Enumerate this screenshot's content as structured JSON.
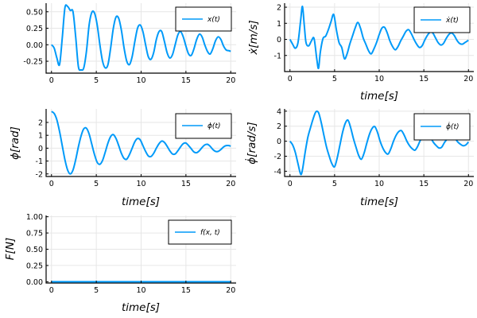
{
  "colors": {
    "line": "#009af9",
    "grid": "#e6e6e6",
    "axis": "#000000",
    "background": "#ffffff"
  },
  "chart_data": [
    {
      "id": "x",
      "type": "line",
      "title": "",
      "xlabel": "",
      "ylabel": "",
      "legend": "x(t)",
      "legend_position": "top-right",
      "grid": true,
      "xlim": [
        -0.6,
        20.6
      ],
      "ylim": [
        -0.43,
        0.63
      ],
      "xticks": [
        0,
        5,
        10,
        15,
        20
      ],
      "xtick_labels": [
        "0",
        "5",
        "10",
        "15",
        "20"
      ],
      "yticks": [
        -0.25,
        0,
        0.25,
        0.5
      ],
      "ytick_labels": [
        "-0.25",
        "0.00",
        "0.25",
        "0.50"
      ],
      "series": [
        {
          "name": "x(t)",
          "x": [
            0,
            0.3,
            0.6,
            0.9,
            1.2,
            1.5,
            1.8,
            2.1,
            2.4,
            2.7,
            3.0,
            3.3,
            3.6,
            3.9,
            4.2,
            4.5,
            4.8,
            5.1,
            5.4,
            5.7,
            6.0,
            6.3,
            6.6,
            6.9,
            7.2,
            7.5,
            7.8,
            8.1,
            8.4,
            8.7,
            9.0,
            9.3,
            9.6,
            9.9,
            10.2,
            10.5,
            10.8,
            11.1,
            11.4,
            11.7,
            12.0,
            12.3,
            12.6,
            12.9,
            13.2,
            13.5,
            13.8,
            14.1,
            14.4,
            14.7,
            15.0,
            15.3,
            15.6,
            15.9,
            16.2,
            16.5,
            16.8,
            17.1,
            17.4,
            17.7,
            18.0,
            18.3,
            18.6,
            18.9,
            19.2,
            19.5,
            19.8,
            20.0
          ],
          "values": [
            0,
            -0.05,
            -0.2,
            -0.3,
            0.1,
            0.56,
            0.58,
            0.52,
            0.5,
            0.12,
            -0.33,
            -0.38,
            -0.35,
            -0.1,
            0.3,
            0.49,
            0.48,
            0.3,
            0,
            -0.25,
            -0.35,
            -0.3,
            -0.05,
            0.25,
            0.42,
            0.4,
            0.22,
            -0.05,
            -0.25,
            -0.3,
            -0.18,
            0.05,
            0.25,
            0.3,
            0.2,
            0,
            -0.18,
            -0.22,
            -0.12,
            0.08,
            0.2,
            0.2,
            0.05,
            -0.12,
            -0.2,
            -0.15,
            0,
            0.15,
            0.2,
            0.12,
            -0.02,
            -0.14,
            -0.16,
            -0.06,
            0.08,
            0.16,
            0.12,
            0,
            -0.1,
            -0.14,
            -0.06,
            0.06,
            0.12,
            0.08,
            -0.02,
            -0.08,
            -0.09,
            -0.1
          ]
        }
      ]
    },
    {
      "id": "xdot",
      "type": "line",
      "title": "",
      "xlabel": "time[s]",
      "ylabel": "ẋ[m/s]",
      "legend": "ẋ(t)",
      "legend_position": "top-right",
      "grid": true,
      "xlim": [
        -0.6,
        20.6
      ],
      "ylim": [
        -2.0,
        2.25
      ],
      "xticks": [
        0,
        5,
        10,
        15,
        20
      ],
      "xtick_labels": [
        "0",
        "5",
        "10",
        "15",
        "20"
      ],
      "yticks": [
        -1,
        0,
        1,
        2
      ],
      "ytick_labels": [
        "-1",
        "0",
        "1",
        "2"
      ],
      "series": [
        {
          "name": "ẋ(t)",
          "x": [
            0,
            0.3,
            0.6,
            0.9,
            1.2,
            1.4,
            1.6,
            1.8,
            2.1,
            2.4,
            2.7,
            3.0,
            3.2,
            3.4,
            3.7,
            4.0,
            4.3,
            4.6,
            4.9,
            5.2,
            5.5,
            5.8,
            6.1,
            6.4,
            6.7,
            7.0,
            7.3,
            7.6,
            7.9,
            8.2,
            8.5,
            8.8,
            9.1,
            9.4,
            9.7,
            10.0,
            10.3,
            10.6,
            10.9,
            11.2,
            11.5,
            11.8,
            12.1,
            12.4,
            12.7,
            13.0,
            13.3,
            13.6,
            13.9,
            14.2,
            14.5,
            14.8,
            15.1,
            15.4,
            15.7,
            16.0,
            16.3,
            16.6,
            16.9,
            17.2,
            17.5,
            17.8,
            18.1,
            18.4,
            18.7,
            19.0,
            19.3,
            19.6,
            20.0
          ],
          "values": [
            0,
            -0.3,
            -0.55,
            -0.2,
            1.2,
            2.05,
            0.9,
            -0.2,
            -0.4,
            -0.1,
            0.05,
            -1.2,
            -1.8,
            -0.8,
            0.05,
            0.2,
            0.6,
            1.1,
            1.55,
            0.6,
            -0.2,
            -0.5,
            -1.2,
            -0.9,
            -0.3,
            0.2,
            0.7,
            1.05,
            0.7,
            0.1,
            -0.3,
            -0.7,
            -0.9,
            -0.6,
            -0.2,
            0.3,
            0.7,
            0.75,
            0.4,
            -0.1,
            -0.45,
            -0.65,
            -0.45,
            -0.1,
            0.2,
            0.5,
            0.6,
            0.35,
            0,
            -0.3,
            -0.5,
            -0.4,
            -0.05,
            0.25,
            0.45,
            0.4,
            0.1,
            -0.2,
            -0.35,
            -0.25,
            0.05,
            0.3,
            0.4,
            0.25,
            -0.05,
            -0.25,
            -0.3,
            -0.2,
            -0.05
          ]
        }
      ]
    },
    {
      "id": "phi",
      "type": "line",
      "title": "",
      "xlabel": "time[s]",
      "ylabel": "ϕ[rad]",
      "legend": "ϕ(t)",
      "legend_position": "top-right",
      "grid": true,
      "xlim": [
        -0.6,
        20.6
      ],
      "ylim": [
        -2.2,
        3.05
      ],
      "xticks": [
        0,
        5,
        10,
        15,
        20
      ],
      "xtick_labels": [
        "0",
        "5",
        "10",
        "15",
        "20"
      ],
      "yticks": [
        -2,
        -1,
        0,
        1,
        2
      ],
      "ytick_labels": [
        "-2",
        "-1",
        "0",
        "1",
        "2"
      ],
      "series": [
        {
          "name": "ϕ(t)",
          "x": [
            0,
            0.3,
            0.6,
            0.9,
            1.2,
            1.5,
            1.8,
            2.1,
            2.4,
            2.7,
            3.0,
            3.3,
            3.6,
            3.9,
            4.2,
            4.5,
            4.8,
            5.1,
            5.4,
            5.7,
            6.0,
            6.3,
            6.6,
            6.9,
            7.2,
            7.5,
            7.8,
            8.1,
            8.4,
            8.7,
            9.0,
            9.3,
            9.6,
            9.9,
            10.2,
            10.5,
            10.8,
            11.1,
            11.4,
            11.7,
            12.0,
            12.3,
            12.6,
            12.9,
            13.2,
            13.5,
            13.8,
            14.1,
            14.4,
            14.7,
            15.0,
            15.3,
            15.6,
            15.9,
            16.2,
            16.5,
            16.8,
            17.1,
            17.4,
            17.7,
            18.0,
            18.3,
            18.6,
            18.9,
            19.2,
            19.5,
            19.8,
            20.0
          ],
          "values": [
            2.85,
            2.7,
            2.2,
            1.3,
            0.2,
            -0.9,
            -1.7,
            -2.0,
            -1.7,
            -0.9,
            0.1,
            0.95,
            1.5,
            1.55,
            1.1,
            0.3,
            -0.5,
            -1.1,
            -1.25,
            -0.95,
            -0.3,
            0.4,
            0.9,
            1.05,
            0.75,
            0.2,
            -0.4,
            -0.8,
            -0.85,
            -0.5,
            0,
            0.5,
            0.75,
            0.65,
            0.2,
            -0.25,
            -0.6,
            -0.65,
            -0.4,
            0,
            0.35,
            0.55,
            0.45,
            0.15,
            -0.2,
            -0.45,
            -0.45,
            -0.2,
            0.1,
            0.35,
            0.4,
            0.2,
            -0.05,
            -0.3,
            -0.35,
            -0.2,
            0.05,
            0.25,
            0.3,
            0.15,
            -0.1,
            -0.25,
            -0.25,
            -0.1,
            0.1,
            0.2,
            0.2,
            0.15
          ]
        }
      ]
    },
    {
      "id": "phidot",
      "type": "line",
      "title": "",
      "xlabel": "time[s]",
      "ylabel": "ϕ̇[rad/s]",
      "legend": "ϕ̇(t)",
      "legend_position": "top-right",
      "grid": true,
      "xlim": [
        -0.6,
        20.6
      ],
      "ylim": [
        -4.7,
        4.3
      ],
      "xticks": [
        0,
        5,
        10,
        15,
        20
      ],
      "xtick_labels": [
        "0",
        "5",
        "10",
        "15",
        "20"
      ],
      "yticks": [
        -4,
        -2,
        0,
        2,
        4
      ],
      "ytick_labels": [
        "-4",
        "-2",
        "0",
        "2",
        "4"
      ],
      "series": [
        {
          "name": "ϕ̇(t)",
          "x": [
            0,
            0.3,
            0.6,
            0.9,
            1.2,
            1.4,
            1.7,
            2.0,
            2.3,
            2.6,
            2.9,
            3.2,
            3.5,
            3.8,
            4.1,
            4.4,
            4.7,
            5.0,
            5.3,
            5.6,
            5.9,
            6.2,
            6.5,
            6.8,
            7.1,
            7.4,
            7.7,
            8.0,
            8.3,
            8.6,
            8.9,
            9.2,
            9.5,
            9.8,
            10.1,
            10.4,
            10.7,
            11.0,
            11.3,
            11.6,
            11.9,
            12.2,
            12.5,
            12.8,
            13.1,
            13.4,
            13.7,
            14.0,
            14.3,
            14.6,
            14.9,
            15.2,
            15.5,
            15.8,
            16.1,
            16.4,
            16.7,
            17.0,
            17.3,
            17.6,
            17.9,
            18.2,
            18.5,
            18.8,
            19.1,
            19.4,
            19.7,
            20.0
          ],
          "values": [
            0,
            -0.5,
            -1.5,
            -3.0,
            -4.4,
            -3.8,
            -1.5,
            0.5,
            1.8,
            3.0,
            3.9,
            3.8,
            2.5,
            0.8,
            -0.8,
            -2.0,
            -3.0,
            -3.4,
            -2.2,
            -0.5,
            1.2,
            2.4,
            2.8,
            1.8,
            0.4,
            -0.8,
            -1.9,
            -2.4,
            -1.6,
            -0.3,
            0.9,
            1.7,
            1.95,
            1.2,
            0,
            -0.9,
            -1.5,
            -1.7,
            -1.0,
            0,
            0.8,
            1.3,
            1.4,
            0.8,
            0,
            -0.6,
            -1.0,
            -1.2,
            -0.7,
            0.1,
            0.6,
            0.9,
            1.0,
            0.4,
            -0.2,
            -0.6,
            -0.9,
            -0.8,
            -0.2,
            0.3,
            0.6,
            0.7,
            0.4,
            -0.1,
            -0.4,
            -0.6,
            -0.5,
            -0.1
          ]
        }
      ]
    },
    {
      "id": "force",
      "type": "line",
      "title": "",
      "xlabel": "time[s]",
      "ylabel": "F[N]",
      "legend": "f(x, t)",
      "legend_position": "top-right",
      "grid": true,
      "xlim": [
        -0.6,
        20.6
      ],
      "ylim": [
        -0.02,
        1.02
      ],
      "xticks": [
        0,
        5,
        10,
        15,
        20
      ],
      "xtick_labels": [
        "0",
        "5",
        "10",
        "15",
        "20"
      ],
      "yticks": [
        0,
        0.25,
        0.5,
        0.75,
        1.0
      ],
      "ytick_labels": [
        "0.00",
        "0.25",
        "0.50",
        "0.75",
        "1.00"
      ],
      "series": [
        {
          "name": "f(x, t)",
          "x": [
            0,
            20
          ],
          "values": [
            0,
            0
          ]
        }
      ]
    }
  ]
}
